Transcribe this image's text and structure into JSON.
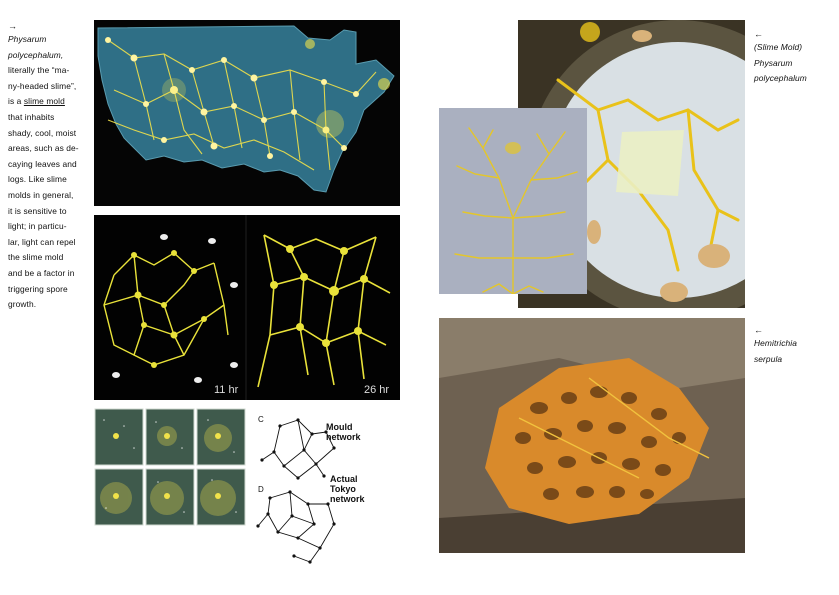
{
  "left_caption": {
    "arrow": "→",
    "species_line1": "Physarum",
    "species_line2": "polycephalum,",
    "body_lines": [
      "literally the “ma-",
      "ny-headed slime”,",
      "is a",
      "slime mold",
      "that inhabits",
      "shady, cool, moist",
      "areas, such as de-",
      "caying leaves and",
      "logs. Like slime",
      "molds in general,",
      "it is sensitive to",
      "light; in particu-",
      "lar, light can repel",
      "the slime mold",
      "and be a factor in",
      "triggering spore",
      "growth."
    ]
  },
  "right_caption_top": {
    "arrow": "←",
    "line1": "(Slime Mold)",
    "line2": "Physarum",
    "line3": "polycephalum"
  },
  "right_caption_bottom": {
    "arrow": "←",
    "line1": "Hemitrichia",
    "line2": "serpula"
  },
  "growth_panel": {
    "label_left": "11 hr",
    "label_right": "26 hr"
  },
  "network_panel": {
    "letter_c": "C",
    "letter_d": "D",
    "mould_line1": "Mould",
    "mould_line2": "network",
    "tokyo_line1": "Actual",
    "tokyo_line2": "Tokyo",
    "tokyo_line3": "network"
  },
  "colors": {
    "slime_yellow": "#f2e24a",
    "map_blue": "#2f6f86",
    "plasmodium_orange": "#d98a2b"
  }
}
